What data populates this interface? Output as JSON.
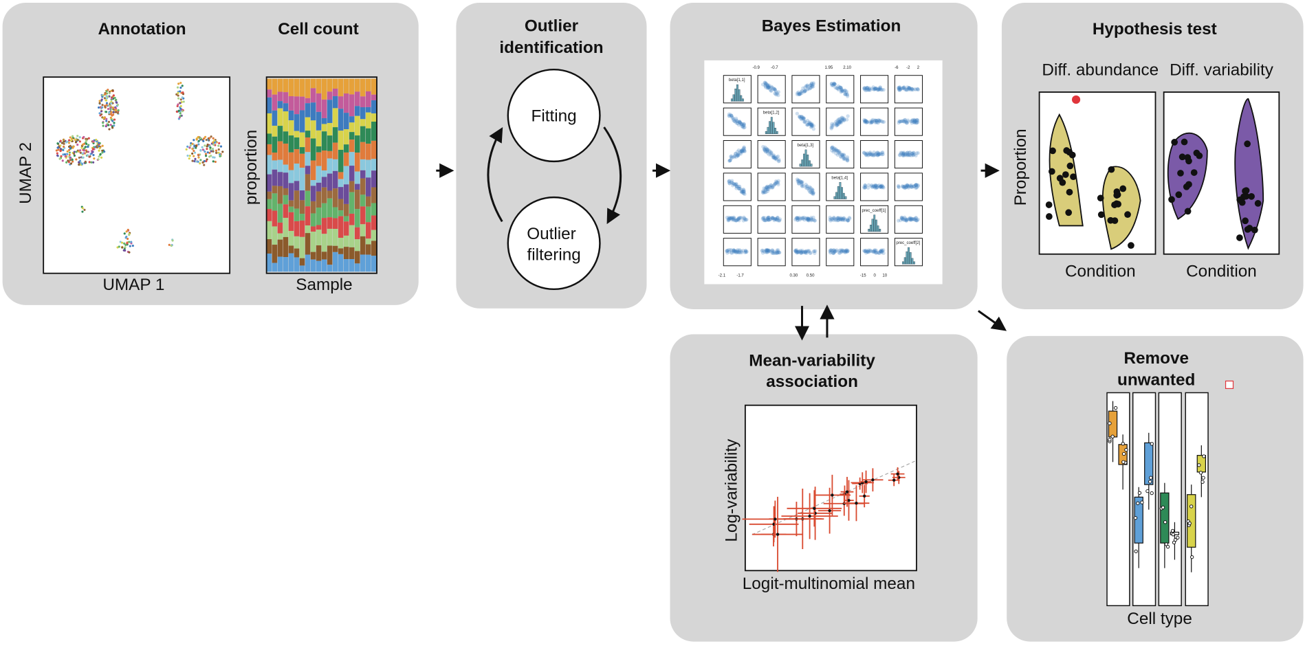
{
  "annotation": {
    "title": "Annotation",
    "x_label": "UMAP 1",
    "y_label": "UMAP 2"
  },
  "cell_count": {
    "title": "Cell count",
    "x_label": "Sample",
    "y_label": "proportion"
  },
  "outlier_identification": {
    "title": [
      "Outlier",
      "identification"
    ],
    "nodes": [
      {
        "label": [
          "Fitting"
        ]
      },
      {
        "label": [
          "Outlier",
          "filtering"
        ]
      }
    ]
  },
  "bayes_estimation": {
    "title": "Bayes Estimation",
    "diagonal_labels": [
      "beta[1,1]",
      "beta[1,2]",
      "beta[1,3]",
      "beta[1,4]",
      "prec_coeff[1]",
      "prec_coeff[2]"
    ],
    "top_tick_labels": [
      "-0.9",
      "-0.7",
      "1.95",
      "2.10",
      "-6",
      "-2",
      "2"
    ],
    "bottom_tick_labels": [
      "-2.1",
      "-1.7",
      "0.30",
      "0.50",
      "-15",
      "0",
      "10"
    ]
  },
  "hypothesis_test": {
    "title": "Hypothesis test",
    "y_label": "Proportion",
    "subplots": [
      {
        "title": "Diff. abundance",
        "x_label": "Condition"
      },
      {
        "title": "Diff. variability",
        "x_label": "Condition"
      }
    ]
  },
  "mean_variability": {
    "title": [
      "Mean-variability",
      "association"
    ],
    "x_label": "Logit-multinomial mean",
    "y_label": "Log-variability"
  },
  "remove_unwanted": {
    "title": [
      "Remove",
      "unwanted"
    ],
    "x_label": "Cell type"
  }
}
